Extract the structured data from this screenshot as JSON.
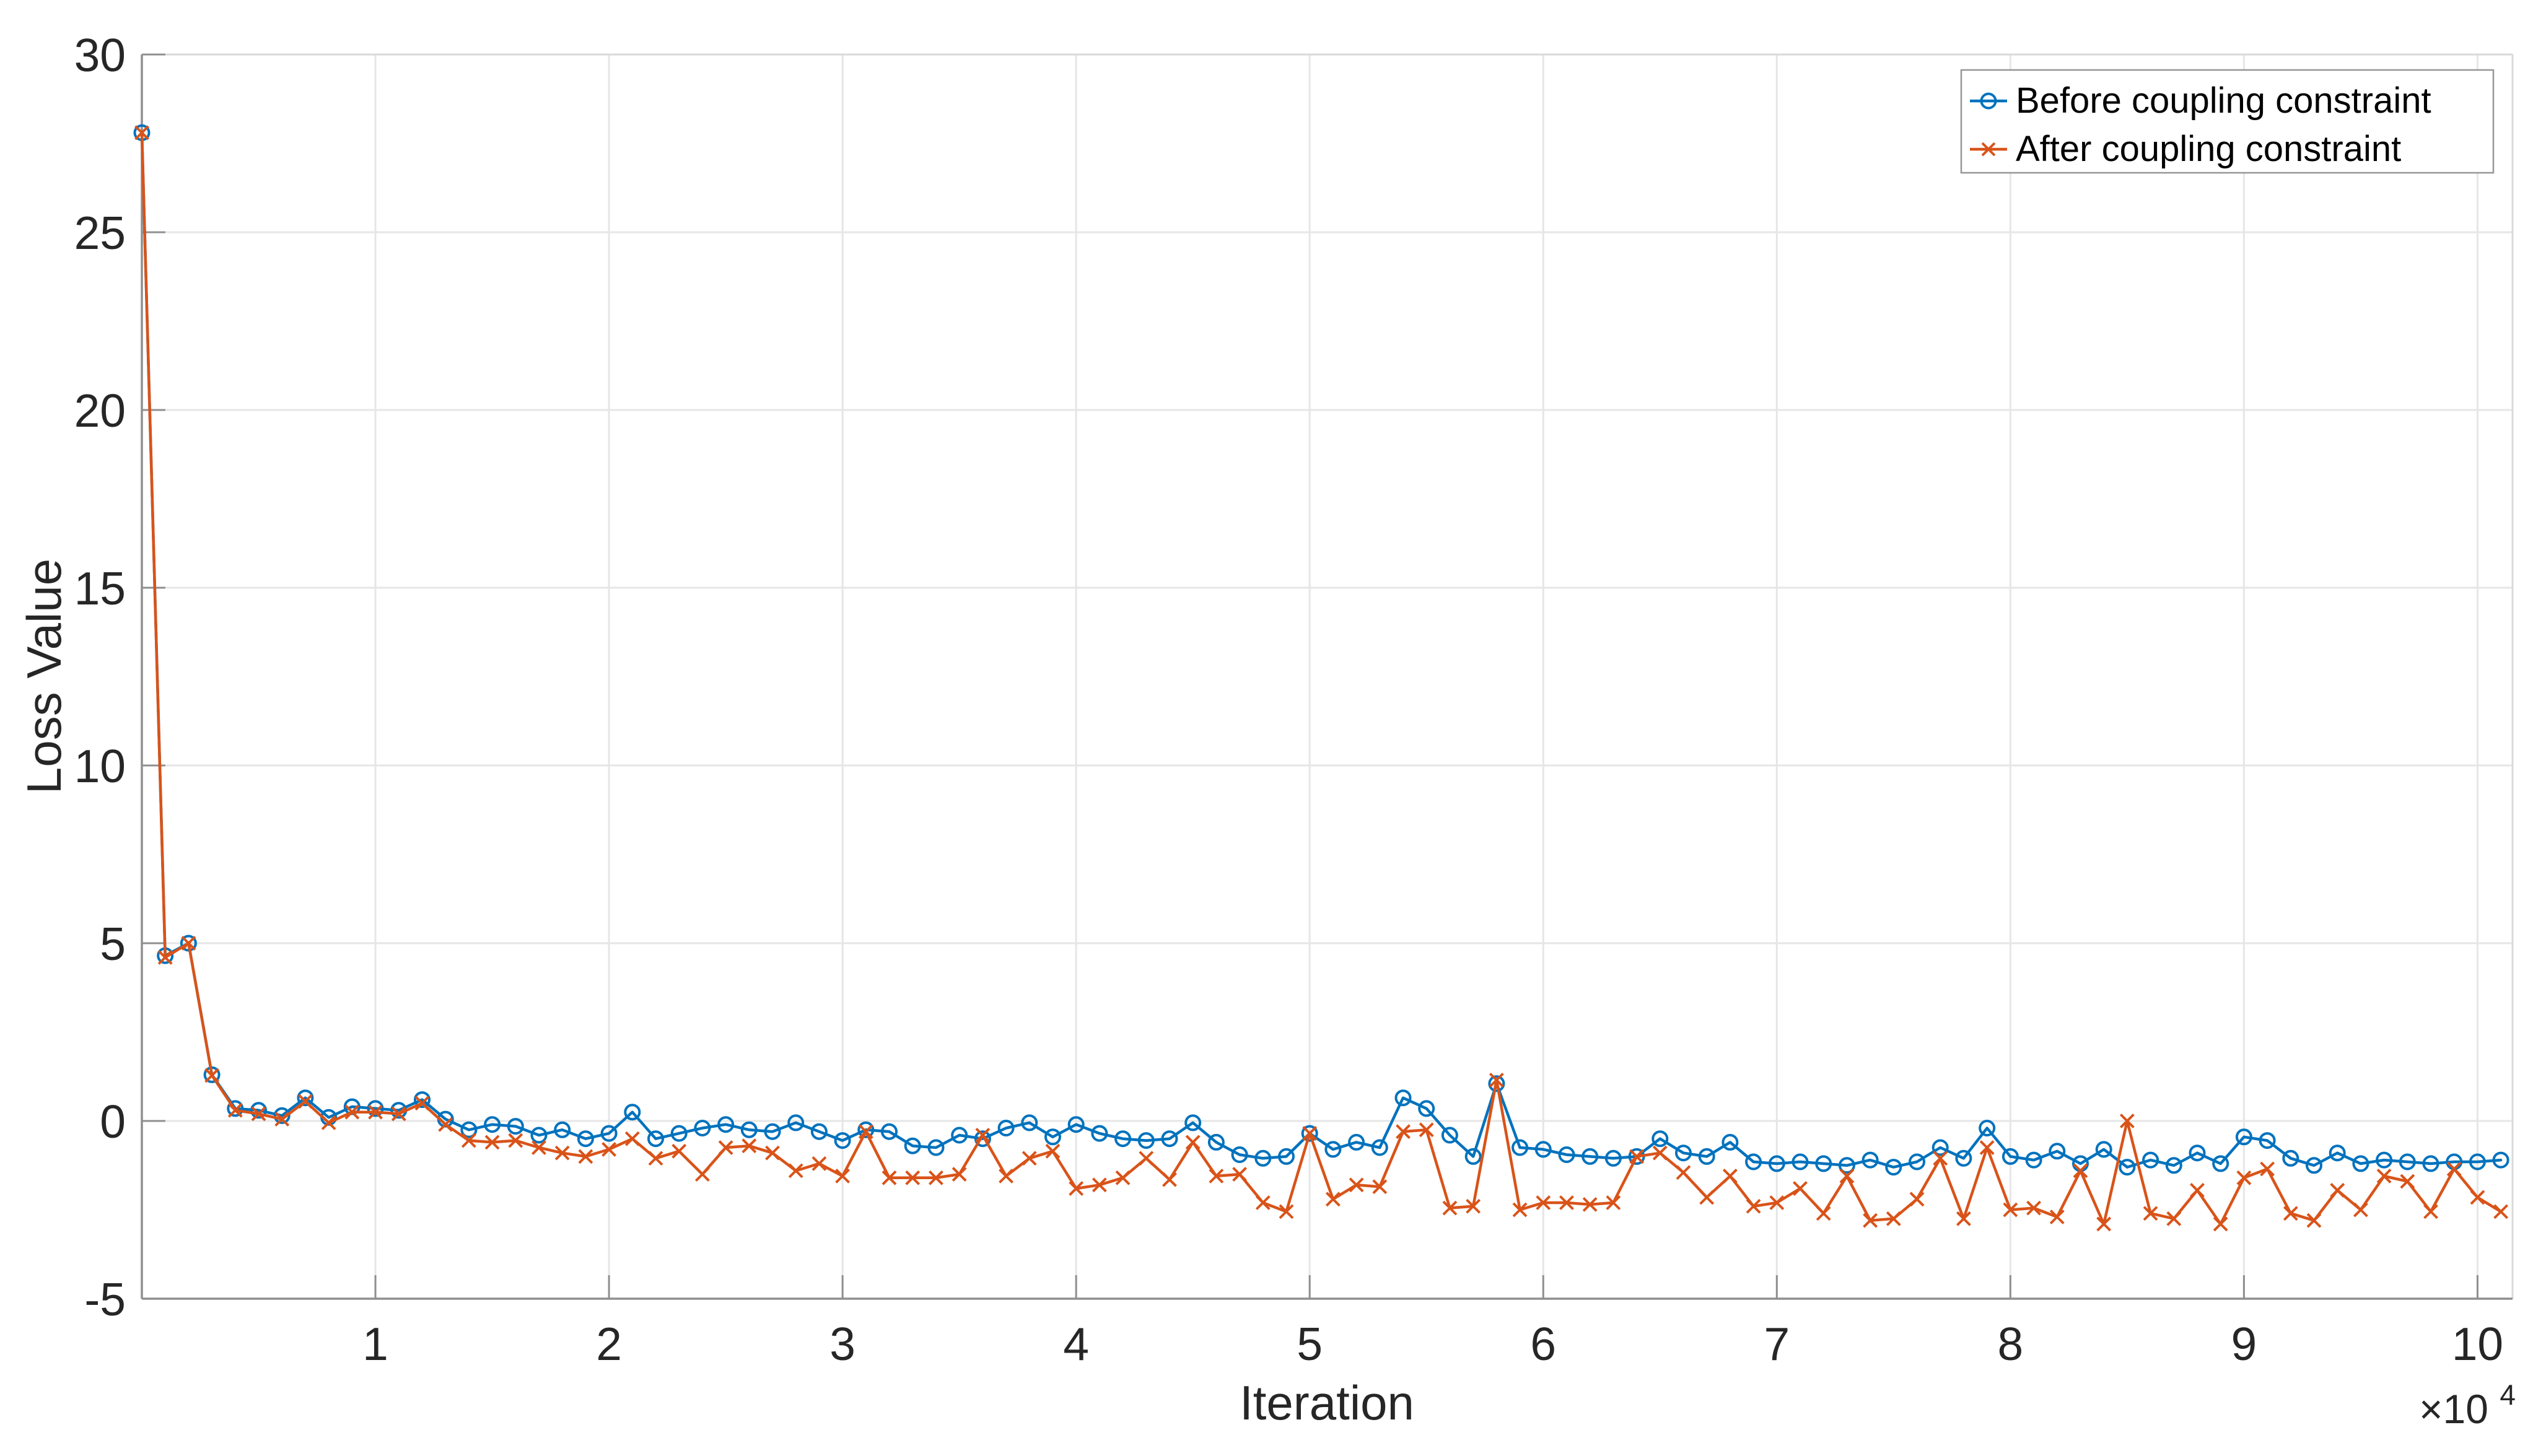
{
  "chart_data": {
    "type": "line",
    "title": "",
    "xlabel": "Iteration",
    "ylabel": "Loss Value",
    "x_axis_multiplier": {
      "base": "×10",
      "exponent": "4"
    },
    "xlim": [
      0,
      10.15
    ],
    "ylim": [
      -5,
      30
    ],
    "x_tick_values": [
      1,
      2,
      3,
      4,
      5,
      6,
      7,
      8,
      9,
      10
    ],
    "x_tick_labels": [
      "1",
      "2",
      "3",
      "4",
      "5",
      "6",
      "7",
      "8",
      "9",
      "10"
    ],
    "y_tick_values": [
      -5,
      0,
      5,
      10,
      15,
      20,
      25,
      30
    ],
    "y_tick_labels": [
      "-5",
      "0",
      "5",
      "10",
      "15",
      "20",
      "25",
      "30"
    ],
    "grid": true,
    "legend": {
      "position": "top-right"
    },
    "x": [
      0.0,
      0.1,
      0.2,
      0.3,
      0.4,
      0.5,
      0.6,
      0.7,
      0.8,
      0.9,
      1.0,
      1.1,
      1.2,
      1.3,
      1.4,
      1.5,
      1.6,
      1.7,
      1.8,
      1.9,
      2.0,
      2.1,
      2.2,
      2.3,
      2.4,
      2.5,
      2.6,
      2.7,
      2.8,
      2.9,
      3.0,
      3.1,
      3.2,
      3.3,
      3.4,
      3.5,
      3.6,
      3.7,
      3.8,
      3.9,
      4.0,
      4.1,
      4.2,
      4.3,
      4.4,
      4.5,
      4.6,
      4.7,
      4.8,
      4.9,
      5.0,
      5.1,
      5.2,
      5.3,
      5.4,
      5.5,
      5.6,
      5.7,
      5.8,
      5.9,
      6.0,
      6.1,
      6.2,
      6.3,
      6.4,
      6.5,
      6.6,
      6.7,
      6.8,
      6.9,
      7.0,
      7.1,
      7.2,
      7.3,
      7.4,
      7.5,
      7.6,
      7.7,
      7.8,
      7.9,
      8.0,
      8.1,
      8.2,
      8.3,
      8.4,
      8.5,
      8.6,
      8.7,
      8.8,
      8.9,
      9.0,
      9.1,
      9.2,
      9.3,
      9.4,
      9.5,
      9.6,
      9.7,
      9.8,
      9.9,
      10.0,
      10.1
    ],
    "series": [
      {
        "name": "Before coupling constraint",
        "color": "#0072BD",
        "marker": "circle",
        "values": [
          27.8,
          4.65,
          5.0,
          1.3,
          0.35,
          0.3,
          0.15,
          0.65,
          0.1,
          0.4,
          0.35,
          0.3,
          0.6,
          0.05,
          -0.25,
          -0.1,
          -0.15,
          -0.4,
          -0.25,
          -0.5,
          -0.35,
          0.25,
          -0.5,
          -0.35,
          -0.2,
          -0.1,
          -0.25,
          -0.3,
          -0.05,
          -0.3,
          -0.55,
          -0.25,
          -0.3,
          -0.7,
          -0.75,
          -0.4,
          -0.5,
          -0.2,
          -0.05,
          -0.45,
          -0.1,
          -0.35,
          -0.5,
          -0.55,
          -0.5,
          -0.05,
          -0.6,
          -0.95,
          -1.05,
          -1.0,
          -0.35,
          -0.8,
          -0.6,
          -0.75,
          0.65,
          0.35,
          -0.4,
          -1.0,
          1.05,
          -0.75,
          -0.8,
          -0.95,
          -1.0,
          -1.05,
          -1.0,
          -0.5,
          -0.9,
          -1.0,
          -0.6,
          -1.15,
          -1.2,
          -1.15,
          -1.2,
          -1.25,
          -1.1,
          -1.3,
          -1.15,
          -0.75,
          -1.05,
          -0.2,
          -1.0,
          -1.1,
          -0.85,
          -1.2,
          -0.8,
          -1.3,
          -1.1,
          -1.25,
          -0.9,
          -1.2,
          -0.45,
          -0.55,
          -1.05,
          -1.25,
          -0.9,
          -1.2,
          -1.1,
          -1.15,
          -1.2,
          -1.15,
          -1.15,
          -1.1
        ]
      },
      {
        "name": "After coupling constraint",
        "color": "#D95319",
        "marker": "x",
        "values": [
          27.8,
          4.6,
          5.0,
          1.28,
          0.3,
          0.2,
          0.05,
          0.55,
          -0.05,
          0.25,
          0.25,
          0.2,
          0.5,
          -0.1,
          -0.55,
          -0.6,
          -0.55,
          -0.75,
          -0.9,
          -1.0,
          -0.8,
          -0.5,
          -1.05,
          -0.85,
          -1.5,
          -0.75,
          -0.7,
          -0.9,
          -1.4,
          -1.2,
          -1.55,
          -0.3,
          -1.6,
          -1.6,
          -1.6,
          -1.5,
          -0.4,
          -1.55,
          -1.05,
          -0.85,
          -1.9,
          -1.8,
          -1.6,
          -1.05,
          -1.65,
          -0.6,
          -1.55,
          -1.5,
          -2.3,
          -2.55,
          -0.35,
          -2.2,
          -1.8,
          -1.85,
          -0.3,
          -0.25,
          -2.45,
          -2.4,
          1.15,
          -2.5,
          -2.3,
          -2.3,
          -2.35,
          -2.3,
          -1.0,
          -0.9,
          -1.45,
          -2.15,
          -1.55,
          -2.4,
          -2.3,
          -1.9,
          -2.6,
          -1.55,
          -2.8,
          -2.75,
          -2.2,
          -1.05,
          -2.75,
          -0.75,
          -2.5,
          -2.45,
          -2.7,
          -1.4,
          -2.9,
          0.0,
          -2.6,
          -2.75,
          -1.95,
          -2.9,
          -1.6,
          -1.35,
          -2.6,
          -2.8,
          -1.95,
          -2.5,
          -1.55,
          -1.7,
          -2.55,
          -1.35,
          -2.15,
          -2.55
        ]
      }
    ],
    "colors": {
      "background": "#ffffff",
      "grid": "#e6e6e6",
      "axis": "#8f8f8f",
      "box_light": "#d9d9d9",
      "tick_label": "#262626",
      "legend_border": "#969696",
      "legend_text": "#000000"
    }
  }
}
